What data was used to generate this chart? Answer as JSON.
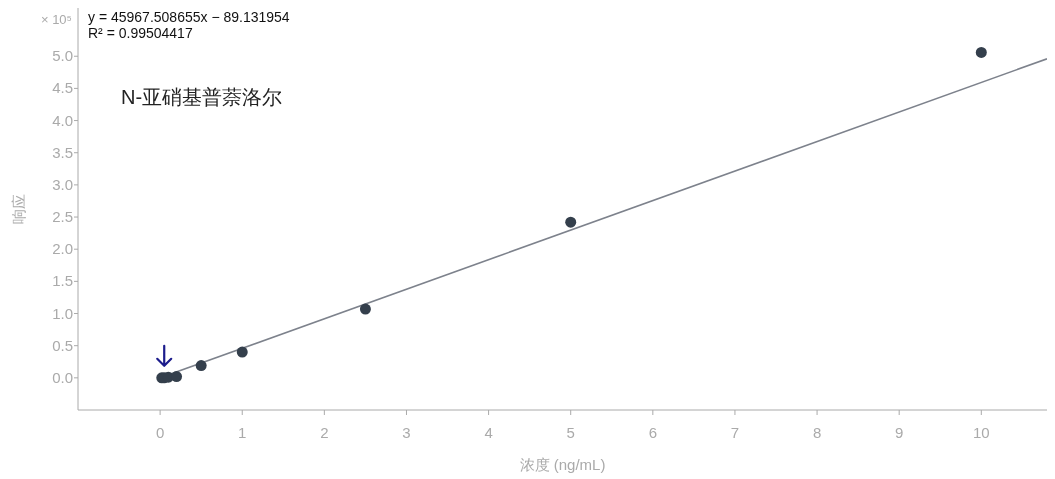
{
  "chart_data": {
    "type": "scatter",
    "title": "N-亚硝基普萘洛尔",
    "xlabel": "浓度 (ng/mL)",
    "ylabel": "响应",
    "annotations": [
      "× 10⁵",
      "y = 45967.508655x − 89.131954",
      "R² = 0.99504417"
    ],
    "series": [
      {
        "type": "scatter",
        "color": "#343f4c",
        "marker": "circle",
        "x": [
          0.02,
          0.05,
          0.1,
          0.2,
          0.5,
          1,
          2.5,
          5,
          10
        ],
        "values": [
          0,
          0,
          0.01,
          0.02,
          0.19,
          0.4,
          1.07,
          2.42,
          5.06
        ]
      },
      {
        "type": "line",
        "color": "#7d828c",
        "x": [
          0,
          10.8
        ],
        "values": [
          0,
          4.96
        ]
      }
    ],
    "xlim": [
      -1,
      10.8
    ],
    "ylim": [
      -0.5,
      5.75
    ],
    "xticks": [
      0,
      1,
      2,
      3,
      4,
      5,
      6,
      7,
      8,
      9,
      10
    ],
    "yticks": [
      {
        "value": 0,
        "label": "0.0"
      },
      {
        "value": 0.5,
        "label": "0.5"
      },
      {
        "value": 1,
        "label": "1.0"
      },
      {
        "value": 1.5,
        "label": "1.5"
      },
      {
        "value": 2,
        "label": "2.0"
      },
      {
        "value": 2.5,
        "label": "2.5"
      },
      {
        "value": 3,
        "label": "3.0"
      },
      {
        "value": 3.5,
        "label": "3.5"
      },
      {
        "value": 4,
        "label": "4.0"
      },
      {
        "value": 4.5,
        "label": "4.5"
      },
      {
        "value": 5,
        "label": "5.0"
      }
    ],
    "grid": false
  }
}
